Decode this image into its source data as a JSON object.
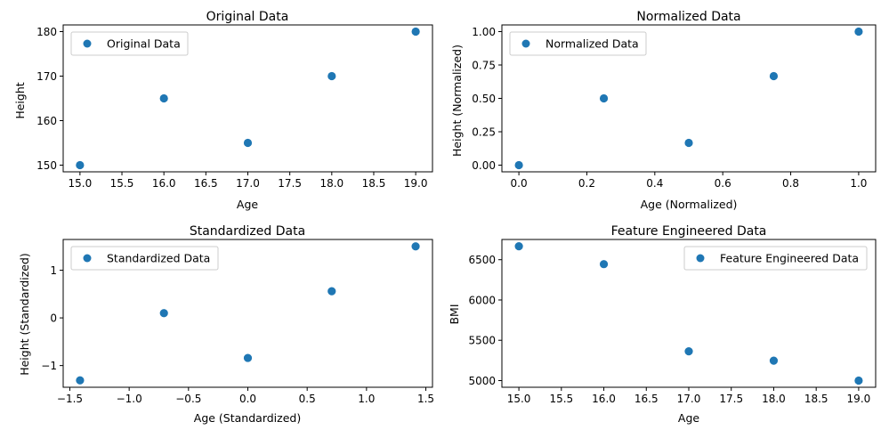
{
  "figure": {
    "background": "#ffffff"
  },
  "chart_data": [
    {
      "id": "original",
      "type": "scatter",
      "title": "Original Data",
      "xlabel": "Age",
      "ylabel": "Height",
      "legend": {
        "label": "Original Data",
        "placement": "top-left"
      },
      "color": "#1f77b4",
      "xlim": [
        14.8,
        19.2
      ],
      "ylim": [
        148.5,
        181.5
      ],
      "xticks": [
        15.0,
        15.5,
        16.0,
        16.5,
        17.0,
        17.5,
        18.0,
        18.5,
        19.0
      ],
      "xtick_labels": [
        "15.0",
        "15.5",
        "16.0",
        "16.5",
        "17.0",
        "17.5",
        "18.0",
        "18.5",
        "19.0"
      ],
      "yticks": [
        150,
        160,
        170,
        180
      ],
      "ytick_labels": [
        "150",
        "160",
        "170",
        "180"
      ],
      "series": [
        {
          "name": "Original Data",
          "x": [
            15,
            16,
            17,
            18,
            19
          ],
          "y": [
            150,
            165,
            155,
            170,
            180
          ]
        }
      ]
    },
    {
      "id": "normalized",
      "type": "scatter",
      "title": "Normalized Data",
      "xlabel": "Age (Normalized)",
      "ylabel": "Height (Normalized)",
      "legend": {
        "label": "Normalized Data",
        "placement": "top-left"
      },
      "color": "#1f77b4",
      "xlim": [
        -0.05,
        1.05
      ],
      "ylim": [
        -0.05,
        1.05
      ],
      "xticks": [
        0.0,
        0.2,
        0.4,
        0.6,
        0.8,
        1.0
      ],
      "xtick_labels": [
        "0.0",
        "0.2",
        "0.4",
        "0.6",
        "0.8",
        "1.0"
      ],
      "yticks": [
        0.0,
        0.25,
        0.5,
        0.75,
        1.0
      ],
      "ytick_labels": [
        "0.00",
        "0.25",
        "0.50",
        "0.75",
        "1.00"
      ],
      "series": [
        {
          "name": "Normalized Data",
          "x": [
            0.0,
            0.25,
            0.5,
            0.75,
            1.0
          ],
          "y": [
            0.0,
            0.5,
            0.1667,
            0.6667,
            1.0
          ]
        }
      ]
    },
    {
      "id": "standardized",
      "type": "scatter",
      "title": "Standardized Data",
      "xlabel": "Age (Standardized)",
      "ylabel": "Height (Standardized)",
      "legend": {
        "label": "Standardized Data",
        "placement": "top-left"
      },
      "color": "#1f77b4",
      "xlim": [
        -1.556,
        1.556
      ],
      "ylim": [
        -1.455,
        1.645
      ],
      "xticks": [
        -1.5,
        -1.0,
        -0.5,
        0.0,
        0.5,
        1.0,
        1.5
      ],
      "xtick_labels": [
        "−1.5",
        "−1.0",
        "−0.5",
        "0.0",
        "0.5",
        "1.0",
        "1.5"
      ],
      "yticks": [
        -1,
        0,
        1
      ],
      "ytick_labels": [
        "−1",
        "0",
        "1"
      ],
      "series": [
        {
          "name": "Standardized Data",
          "x": [
            -1.414,
            -0.707,
            0.0,
            0.707,
            1.414
          ],
          "y": [
            -1.31,
            0.1,
            -0.84,
            0.56,
            1.5
          ]
        }
      ]
    },
    {
      "id": "feature-engineered",
      "type": "scatter",
      "title": "Feature Engineered Data",
      "xlabel": "Age",
      "ylabel": "BMI",
      "legend": {
        "label": "Feature Engineered Data",
        "placement": "top-right"
      },
      "color": "#1f77b4",
      "xlim": [
        14.8,
        19.2
      ],
      "ylim": [
        4917,
        6751
      ],
      "xticks": [
        15.0,
        15.5,
        16.0,
        16.5,
        17.0,
        17.5,
        18.0,
        18.5,
        19.0
      ],
      "xtick_labels": [
        "15.0",
        "15.5",
        "16.0",
        "16.5",
        "17.0",
        "17.5",
        "18.0",
        "18.5",
        "19.0"
      ],
      "yticks": [
        5000,
        5500,
        6000,
        6500
      ],
      "ytick_labels": [
        "5000",
        "5500",
        "6000",
        "6500"
      ],
      "series": [
        {
          "name": "Feature Engineered Data",
          "x": [
            15,
            16,
            17,
            18,
            19
          ],
          "y": [
            6667,
            6445,
            5363,
            5247,
            5000
          ]
        }
      ]
    }
  ]
}
